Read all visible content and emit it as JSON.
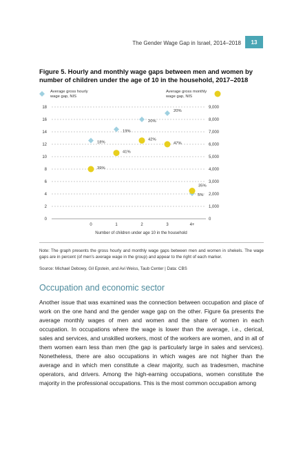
{
  "header": {
    "running_title": "The Gender Wage Gap in Israel, 2014–2018",
    "page_number": "13"
  },
  "figure": {
    "title": "Figure 5. Hourly and monthly wage gaps between men and women by number of children under the age of 10 in the household, 2017–2018"
  },
  "chart_data": {
    "type": "scatter",
    "categories": [
      "0",
      "1",
      "2",
      "3",
      "4+"
    ],
    "xlabel": "Number of children under age 10 in the household",
    "left_axis": {
      "label_line1": "Average gross hourly",
      "label_line2": "wage gap, NIS",
      "ylim": [
        0,
        18
      ],
      "ticks": [
        "0",
        "2",
        "4",
        "6",
        "8",
        "10",
        "12",
        "14",
        "16",
        "18"
      ]
    },
    "right_axis": {
      "label_line1": "Average gross monthly",
      "label_line2": "wage gap, NIS",
      "ylim": [
        0,
        9000
      ],
      "ticks": [
        "0",
        "1,000",
        "2,000",
        "3,000",
        "4,000",
        "5,000",
        "6,000",
        "7,000",
        "8,000",
        "9,000"
      ]
    },
    "grid": true,
    "series": [
      {
        "axis": "left",
        "marker": "diamond",
        "color": "#9fd0e0",
        "values": [
          12.6,
          14.4,
          16.0,
          17.0,
          4.1
        ],
        "labels": [
          "18%",
          "19%",
          "20%",
          "20%",
          "5%"
        ]
      },
      {
        "axis": "right",
        "marker": "circle",
        "color": "#e8cf1e",
        "values": [
          4000,
          5300,
          6300,
          6000,
          2250
        ],
        "labels": [
          "39%",
          "41%",
          "42%",
          "47%",
          "35%"
        ]
      }
    ]
  },
  "note": "Note: The graph presents the gross hourly and monthly wage gaps between men and women in shekels. The wage gaps are in percent (of men's average wage in the group) and appear to the right of each marker.",
  "source": "Source: Michael Debowy, Gil Epstein, and Avi Weiss, Taub Center | Data: CBS",
  "section": {
    "heading": "Occupation and economic sector",
    "body": "Another issue that was examined was the connection between occupation and place of work on the one hand and the gender wage gap on the other. Figure 6a presents the average monthly wages of men and women and the share of women in each occupation. In occupations where the wage is lower than the average, i.e., clerical, sales and services, and unskilled workers, most of the workers are women, and in all of them women earn less than men (the gap is particularly large in sales and services). Nonetheless, there are also occupations in which wages are not higher than the average and in which men constitute a clear majority, such as tradesmen, machine operators, and drivers. Among the high-earning occupations, women constitute the majority in the professional occupations. This is the most common occupation among"
  }
}
